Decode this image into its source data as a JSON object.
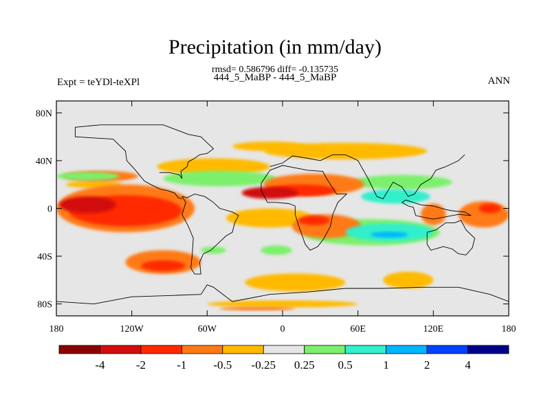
{
  "header": {
    "title": "Precipitation (in mm/day)",
    "stats": "rmsd= 0.586796 diff= -0.135735",
    "case": "444_5_MaBP - 444_5_MaBP",
    "expt": "Expt = teYDl-teXPl",
    "season": "ANN"
  },
  "chart_data": {
    "type": "heatmap",
    "title": "Precipitation (in mm/day)",
    "xlabel": "",
    "ylabel": "",
    "xlim": [
      -180,
      180
    ],
    "ylim": [
      -90,
      90
    ],
    "x_ticks": [
      {
        "value": -180,
        "label": "180"
      },
      {
        "value": -120,
        "label": "120W"
      },
      {
        "value": -60,
        "label": "60W"
      },
      {
        "value": 0,
        "label": "0"
      },
      {
        "value": 60,
        "label": "60E"
      },
      {
        "value": 120,
        "label": "120E"
      },
      {
        "value": 180,
        "label": "180"
      }
    ],
    "y_ticks": [
      {
        "value": 80,
        "label": "80N"
      },
      {
        "value": 40,
        "label": "40N"
      },
      {
        "value": 0,
        "label": "0"
      },
      {
        "value": -40,
        "label": "40S"
      },
      {
        "value": -80,
        "label": "80S"
      }
    ],
    "colorbar": {
      "levels": [
        "-4",
        "-2",
        "-1",
        "-0.5",
        "-0.25",
        "0.25",
        "0.5",
        "1",
        "2",
        "4"
      ],
      "colors": [
        "#8b0000",
        "#d10d0d",
        "#ff2a00",
        "#ff7a14",
        "#ffba00",
        "#e6e6e6",
        "#7cf06c",
        "#33efcb",
        "#00b6ff",
        "#0040ff",
        "#00008b"
      ]
    },
    "regions": [
      {
        "level": 4,
        "lon": -150,
        "lat": 20,
        "w": 45,
        "h": 6
      },
      {
        "level": 3,
        "lon": -145,
        "lat": 27,
        "w": 60,
        "h": 9
      },
      {
        "level": 3,
        "lon": -125,
        "lat": 0,
        "w": 110,
        "h": 40
      },
      {
        "level": 2,
        "lon": -125,
        "lat": -2,
        "w": 90,
        "h": 26
      },
      {
        "level": 1,
        "lon": -155,
        "lat": 3,
        "w": 45,
        "h": 14
      },
      {
        "level": 4,
        "lon": -55,
        "lat": 35,
        "w": 90,
        "h": 14
      },
      {
        "level": 3,
        "lon": -95,
        "lat": -45,
        "w": 60,
        "h": 20
      },
      {
        "level": 2,
        "lon": -95,
        "lat": -48,
        "w": 35,
        "h": 9
      },
      {
        "level": 4,
        "lon": 50,
        "lat": 48,
        "w": 130,
        "h": 14
      },
      {
        "level": 6,
        "lon": -50,
        "lat": 25,
        "w": 90,
        "h": 13
      },
      {
        "level": 6,
        "lon": -155,
        "lat": 27,
        "w": 50,
        "h": 7
      },
      {
        "level": 6,
        "lon": 95,
        "lat": 22,
        "w": 80,
        "h": 12
      },
      {
        "level": 6,
        "lon": 70,
        "lat": -20,
        "w": 110,
        "h": 22
      },
      {
        "level": 3,
        "lon": 25,
        "lat": 20,
        "w": 80,
        "h": 18
      },
      {
        "level": 2,
        "lon": 15,
        "lat": 15,
        "w": 55,
        "h": 10
      },
      {
        "level": 1,
        "lon": -10,
        "lat": 13,
        "w": 45,
        "h": 10
      },
      {
        "level": 4,
        "lon": -10,
        "lat": -8,
        "w": 70,
        "h": 16
      },
      {
        "level": 3,
        "lon": 35,
        "lat": -15,
        "w": 55,
        "h": 20
      },
      {
        "level": 2,
        "lon": 25,
        "lat": -10,
        "w": 25,
        "h": 8
      },
      {
        "level": 7,
        "lon": 90,
        "lat": 10,
        "w": 55,
        "h": 12
      },
      {
        "level": 7,
        "lon": 85,
        "lat": -20,
        "w": 70,
        "h": 15
      },
      {
        "level": 8,
        "lon": 85,
        "lat": -22,
        "w": 30,
        "h": 5
      },
      {
        "level": 3,
        "lon": 120,
        "lat": -5,
        "w": 20,
        "h": 18
      },
      {
        "level": 3,
        "lon": 160,
        "lat": -5,
        "w": 40,
        "h": 22
      },
      {
        "level": 2,
        "lon": 165,
        "lat": 0,
        "w": 18,
        "h": 8
      },
      {
        "level": 4,
        "lon": 100,
        "lat": -60,
        "w": 40,
        "h": 14
      },
      {
        "level": 4,
        "lon": 10,
        "lat": -62,
        "w": 80,
        "h": 15
      },
      {
        "level": 4,
        "lon": 0,
        "lat": -80,
        "w": 120,
        "h": 6
      },
      {
        "level": 3,
        "lon": -20,
        "lat": -84,
        "w": 60,
        "h": 3
      },
      {
        "level": 6,
        "lon": -55,
        "lat": -35,
        "w": 20,
        "h": 6
      },
      {
        "level": 6,
        "lon": -5,
        "lat": -35,
        "w": 25,
        "h": 8
      },
      {
        "level": 4,
        "lon": -10,
        "lat": 52,
        "w": 60,
        "h": 8
      }
    ],
    "coastlines": "simplified continental outlines"
  }
}
